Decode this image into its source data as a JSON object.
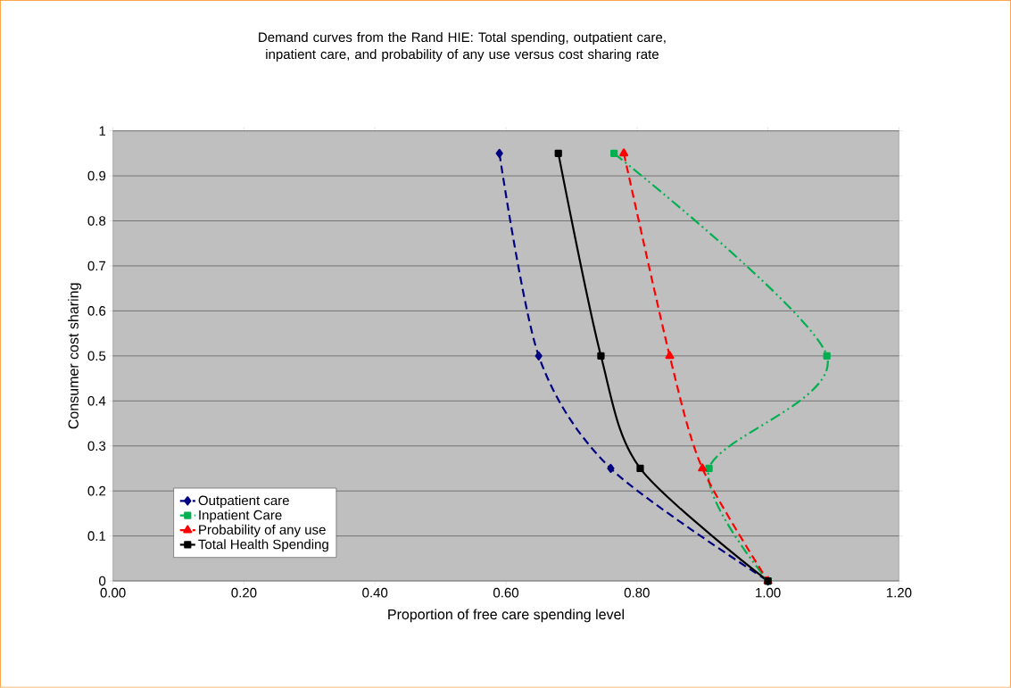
{
  "chart_data": {
    "type": "line",
    "title": "Demand curves from the Rand HIE: Total spending, outpatient care, inpatient care, and probability of any use versus cost sharing rate",
    "xlabel": "Proportion of free care spending level",
    "ylabel": "Consumer cost sharing",
    "xlim": [
      0,
      1.2
    ],
    "ylim": [
      0,
      1
    ],
    "xticks": [
      {
        "value": 0,
        "label": "0.00"
      },
      {
        "value": 0.2,
        "label": "0.20"
      },
      {
        "value": 0.4,
        "label": "0.40"
      },
      {
        "value": 0.6,
        "label": "0.60"
      },
      {
        "value": 0.8,
        "label": "0.80"
      },
      {
        "value": 1,
        "label": "1.00"
      },
      {
        "value": 1.2,
        "label": "1.20"
      }
    ],
    "yticks": [
      0,
      0.1,
      0.2,
      0.3,
      0.4,
      0.5,
      0.6,
      0.7,
      0.8,
      0.9,
      1
    ],
    "grid": "y",
    "legend": "bottom left",
    "series": [
      {
        "name": "Outpatient care",
        "color": "#000080",
        "marker": "diamond",
        "line_style": "dashed",
        "x": [
          0.59,
          0.65,
          0.76,
          1.0
        ],
        "values": [
          0.95,
          0.5,
          0.25,
          0
        ]
      },
      {
        "name": "Inpatient  Care",
        "color": "#00b050",
        "marker": "square",
        "line_style": "dashdotdot",
        "x": [
          0.765,
          1.09,
          0.91,
          1.0
        ],
        "values": [
          0.95,
          0.5,
          0.25,
          0
        ]
      },
      {
        "name": "Probability of any use",
        "color": "#ff0000",
        "marker": "triangle",
        "line_style": "dashed",
        "x": [
          0.78,
          0.85,
          0.9,
          1.0
        ],
        "values": [
          0.95,
          0.5,
          0.25,
          0
        ]
      },
      {
        "name": "Total Health Spending",
        "color": "#000000",
        "marker": "square",
        "line_style": "solid",
        "x": [
          0.68,
          0.745,
          0.805,
          1.0
        ],
        "values": [
          0.95,
          0.5,
          0.25,
          0
        ]
      }
    ]
  }
}
